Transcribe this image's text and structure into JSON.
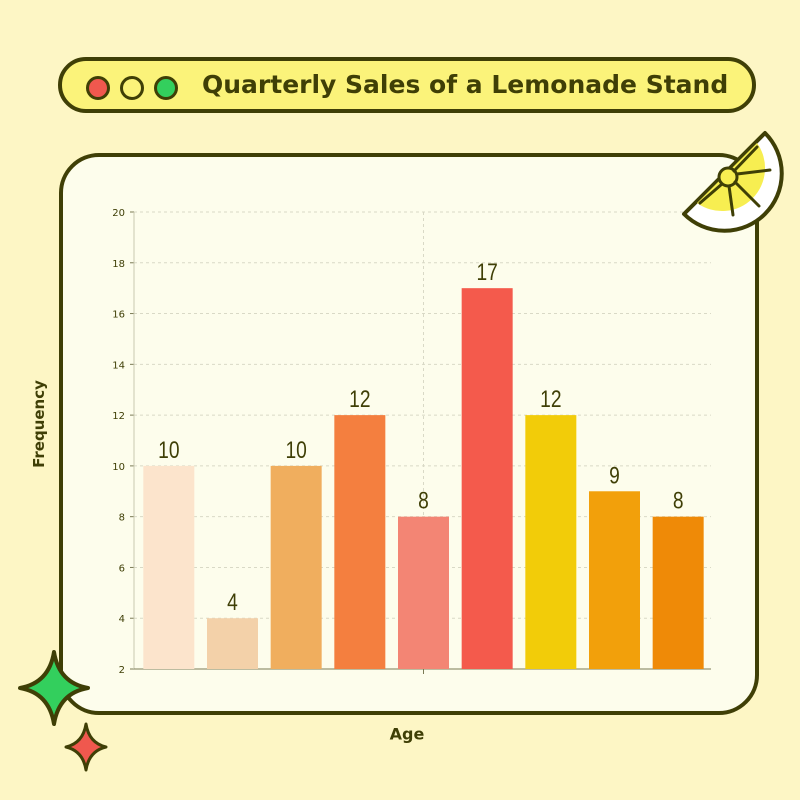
{
  "title": "Quarterly Sales of a Lemonade Stand",
  "window_controls": {
    "red": "#f0584e",
    "yellow": "#fbf37a",
    "green": "#33cf5d"
  },
  "colors": {
    "background": "#fdf6c5",
    "outline": "#3f3f06",
    "panel": "#fdfdec",
    "title_bar": "#fbf37a"
  },
  "decorations": [
    "lemon-slice-icon",
    "large-sparkle-icon",
    "small-sparkle-icon"
  ],
  "chart_data": {
    "type": "bar",
    "title": "Quarterly Sales of a Lemonade Stand",
    "xlabel": "Age",
    "ylabel": "Frequency",
    "ylim": [
      2,
      20
    ],
    "yticks": [
      2,
      4,
      6,
      8,
      10,
      12,
      14,
      16,
      18,
      20
    ],
    "grid": true,
    "values": [
      10,
      4,
      10,
      12,
      8,
      17,
      12,
      9,
      8
    ],
    "colors": [
      "#fce4cc",
      "#f3d1a9",
      "#f0ae5e",
      "#f47f3f",
      "#f38574",
      "#f45a4c",
      "#f2cc09",
      "#f2a00b",
      "#ef8a07"
    ]
  }
}
